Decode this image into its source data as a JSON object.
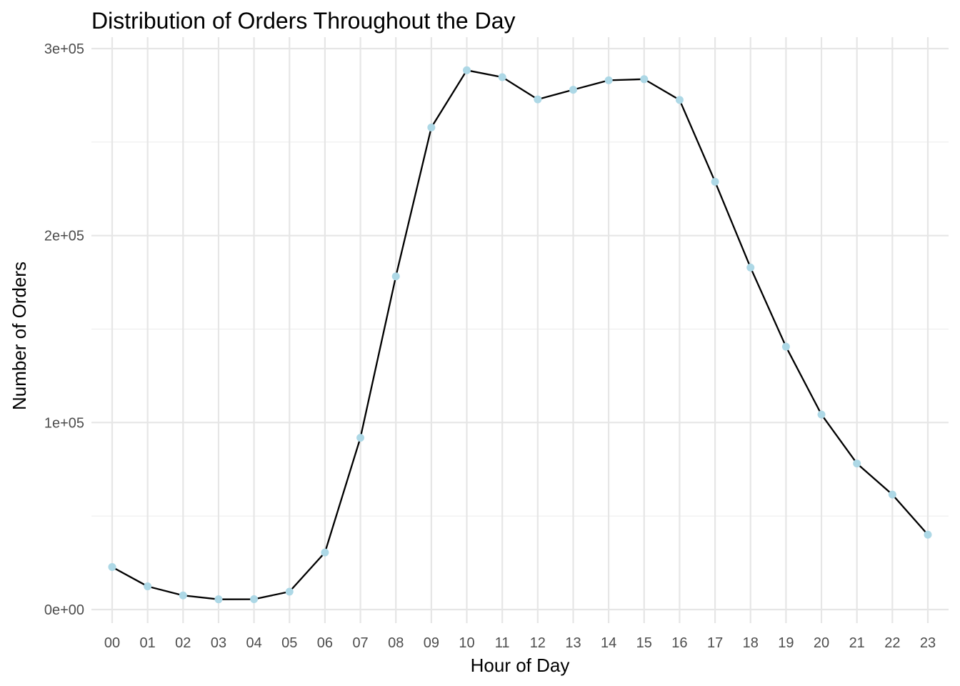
{
  "chart_data": {
    "type": "line",
    "title": "Distribution of Orders Throughout the Day",
    "xlabel": "Hour of Day",
    "ylabel": "Number of Orders",
    "categories": [
      "00",
      "01",
      "02",
      "03",
      "04",
      "05",
      "06",
      "07",
      "08",
      "09",
      "10",
      "11",
      "12",
      "13",
      "14",
      "15",
      "16",
      "17",
      "18",
      "19",
      "20",
      "21",
      "22",
      "23"
    ],
    "values": [
      22758,
      12398,
      7539,
      5474,
      5527,
      9569,
      30529,
      91868,
      178201,
      257812,
      288418,
      284728,
      272841,
      277999,
      283042,
      283639,
      272553,
      228795,
      182912,
      140569,
      104292,
      78109,
      61468,
      40043
    ],
    "ylim": [
      0,
      300000
    ],
    "yticks": [
      0,
      100000,
      200000,
      300000
    ],
    "ytick_labels": [
      "0e+00",
      "1e+05",
      "2e+05",
      "3e+05"
    ],
    "grid": true,
    "legend": "none",
    "colors": {
      "line": "#000000",
      "point": "#add8e6",
      "grid_major": "#e6e6e6",
      "grid_minor": "#eeeeee"
    }
  }
}
